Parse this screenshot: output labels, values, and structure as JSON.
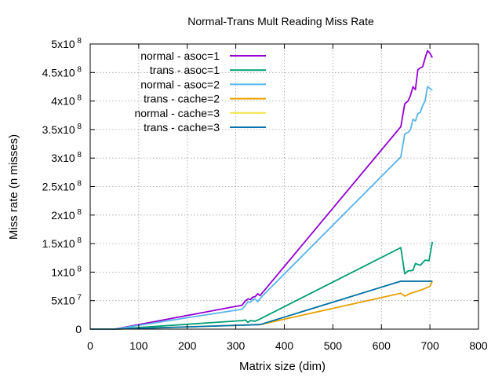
{
  "chart_data": {
    "type": "line",
    "title": "Normal-Trans Mult Reading Miss Rate",
    "xlabel": "Matrix size (dim)",
    "ylabel": "Miss rate (n misses)",
    "xlim": [
      0,
      800
    ],
    "ylim": [
      0,
      500000000
    ],
    "grid": true,
    "legend_position": "top-left",
    "x_ticks": [
      {
        "value": 0,
        "label": "0"
      },
      {
        "value": 100,
        "label": "100"
      },
      {
        "value": 200,
        "label": "200"
      },
      {
        "value": 300,
        "label": "300"
      },
      {
        "value": 400,
        "label": "400"
      },
      {
        "value": 500,
        "label": "500"
      },
      {
        "value": 600,
        "label": "600"
      },
      {
        "value": 700,
        "label": "700"
      },
      {
        "value": 800,
        "label": "800"
      }
    ],
    "y_ticks": [
      {
        "value": 0,
        "mantissa": "0",
        "exponent": ""
      },
      {
        "value": 50000000,
        "mantissa": "5x10",
        "exponent": "7"
      },
      {
        "value": 100000000,
        "mantissa": "1x10",
        "exponent": "8"
      },
      {
        "value": 150000000,
        "mantissa": "1.5x10",
        "exponent": "8"
      },
      {
        "value": 200000000,
        "mantissa": "2x10",
        "exponent": "8"
      },
      {
        "value": 250000000,
        "mantissa": "2.5x10",
        "exponent": "8"
      },
      {
        "value": 300000000,
        "mantissa": "3x10",
        "exponent": "8"
      },
      {
        "value": 350000000,
        "mantissa": "3.5x10",
        "exponent": "8"
      },
      {
        "value": 400000000,
        "mantissa": "4x10",
        "exponent": "8"
      },
      {
        "value": 450000000,
        "mantissa": "4.5x10",
        "exponent": "8"
      },
      {
        "value": 500000000,
        "mantissa": "5x10",
        "exponent": "8"
      }
    ],
    "series": [
      {
        "name": "normal - asoc=1",
        "color": "#9400d3",
        "x": [
          0,
          50,
          313,
          318,
          325,
          330,
          335,
          340,
          345,
          350,
          640,
          648,
          655,
          660,
          665,
          670,
          675,
          680,
          685,
          690,
          695,
          700,
          705
        ],
        "y": [
          0,
          0,
          42000000,
          48000000,
          53000000,
          52000000,
          56000000,
          57000000,
          62000000,
          59000000,
          355000000,
          395000000,
          400000000,
          410000000,
          425000000,
          420000000,
          455000000,
          458000000,
          460000000,
          475000000,
          488000000,
          484000000,
          476000000
        ]
      },
      {
        "name": "trans - asoc=1",
        "color": "#009e73",
        "x": [
          0,
          50,
          313,
          320,
          325,
          330,
          340,
          348,
          640,
          648,
          655,
          665,
          670,
          680,
          690,
          698,
          705
        ],
        "y": [
          0,
          0,
          15000000,
          16000000,
          12000000,
          15000000,
          14000000,
          17000000,
          143000000,
          97000000,
          102000000,
          103000000,
          115000000,
          112000000,
          121000000,
          120000000,
          153000000
        ]
      },
      {
        "name": "normal - asoc=2",
        "color": "#56b4e9",
        "x": [
          0,
          50,
          313,
          318,
          325,
          330,
          335,
          340,
          345,
          350,
          640,
          648,
          655,
          660,
          665,
          670,
          675,
          680,
          685,
          690,
          695,
          700,
          705
        ],
        "y": [
          0,
          0,
          35000000,
          40000000,
          48000000,
          47000000,
          52000000,
          53000000,
          48000000,
          54000000,
          302000000,
          342000000,
          345000000,
          350000000,
          368000000,
          365000000,
          378000000,
          380000000,
          392000000,
          400000000,
          425000000,
          422000000,
          419000000
        ]
      },
      {
        "name": "trans - cache=2",
        "color": "#e69f00",
        "x": [
          0,
          50,
          350,
          640,
          648,
          660,
          680,
          700,
          705
        ],
        "y": [
          0,
          0,
          8000000,
          63000000,
          58000000,
          63000000,
          68000000,
          75000000,
          84000000
        ]
      },
      {
        "name": "normal - cache=3",
        "color": "#f0e442",
        "x": [
          0,
          50,
          350,
          640,
          705
        ],
        "y": [
          0,
          0,
          8000000,
          84000000,
          84000000
        ]
      },
      {
        "name": "trans - cache=3",
        "color": "#0072b2",
        "x": [
          0,
          50,
          350,
          640,
          705
        ],
        "y": [
          0,
          0,
          8000000,
          84000000,
          84000000
        ]
      }
    ]
  }
}
